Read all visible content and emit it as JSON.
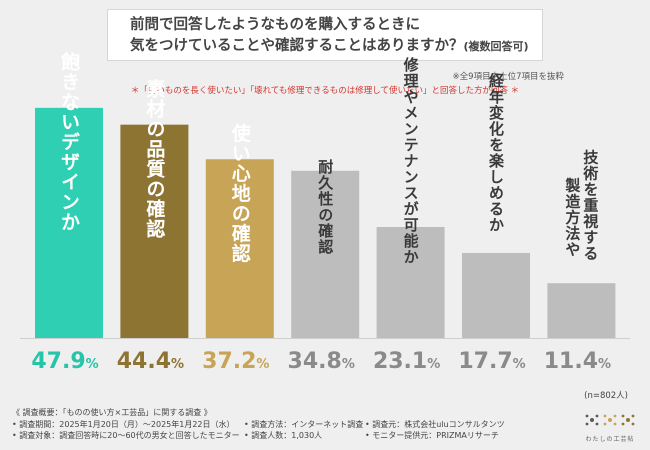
{
  "title_lines": [
    "前問で回答したようなものを購入するときに",
    "気をつけていることや確認することはありますか？"
  ],
  "title_suffix": "(複数回答可)",
  "note_top": "※全9項目中上位7項目を抜粋",
  "note_condition": "＊「良いものを長く使いたい」「壊れても修理できるものは修理して使いたい」と回答した方が回答 ＊",
  "sample_size": "(n=802人)",
  "colors": {
    "bar1": "#2fcfb3",
    "bar2": "#8e7432",
    "bar3": "#c8a457",
    "gray": "#bdbdbd",
    "val1": "#26c4a8",
    "val2": "#8e7432",
    "val3": "#c8a457",
    "valgray": "#8a8a8a"
  },
  "chart_data": {
    "type": "bar",
    "title": "前問で回答したようなものを購入するときに気をつけていることや確認することはありますか？(複数回答可)",
    "categories": [
      "飽きないデザインか",
      "素材の品質の確認",
      "使い心地の確認",
      "耐久性の確認",
      "修理やメンテナンスが可能か",
      "経年変化を楽しめるか",
      "技術を重視する 製造方法や"
    ],
    "values": [
      47.9,
      44.4,
      37.2,
      34.8,
      23.1,
      17.7,
      11.4
    ],
    "value_labels": [
      "47.9%",
      "44.4%",
      "37.2%",
      "34.8%",
      "23.1%",
      "17.7%",
      "11.4%"
    ],
    "unit": "%",
    "ylim": [
      0,
      50
    ],
    "xlabel": "",
    "ylabel": ""
  },
  "footer": {
    "row1": "《 調査概要：「ものの使い方×工芸品」に関する調査 》",
    "row2": [
      "• 調査期間：2025年1月20日（月）〜2025年1月22日（水）",
      "• 調査方法：インターネット調査",
      "• 調査元：株式会社uluコンサルタンツ"
    ],
    "row3": [
      "• 調査対象：調査回答時に20〜60代の男女と回答したモニター",
      "• 調査人数：1,030人",
      "• モニター提供元：PRIZMAリサーチ"
    ]
  },
  "logo_text": "わたしの工芸帖"
}
